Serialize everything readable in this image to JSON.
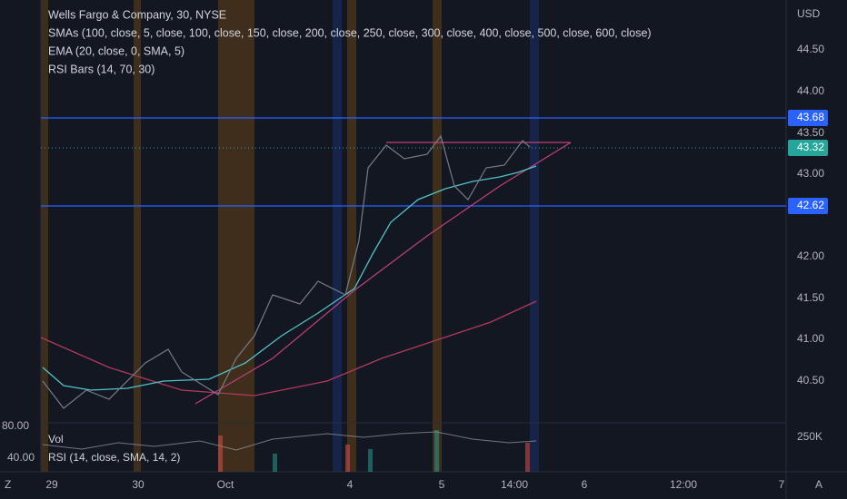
{
  "legend": {
    "title": "Wells Fargo & Company, 30, NYSE",
    "lines": [
      "SMAs (100, close, 5, close, 100, close, 150, close, 200, close, 250, close, 300, close, 400, close, 500, close, 600, close)",
      "EMA (20, close, 0, SMA, 5)",
      "RSI Bars (14, 70, 30)"
    ]
  },
  "price_axis": {
    "currency": "USD",
    "labels": [
      "44.50",
      "44.00",
      "43.50",
      "43.00",
      "42.00",
      "41.50",
      "41.00",
      "40.50"
    ]
  },
  "price_tags": {
    "upper_level": "43.68",
    "current": "43.32",
    "lower_level": "42.62"
  },
  "lower_pane": {
    "left_labels": [
      "80.00",
      "40.00"
    ],
    "right_label": "250K",
    "volume": "Vol",
    "rsi": "RSI (14, close, SMA, 14, 2)"
  },
  "time_axis": {
    "left_button": "Z",
    "labels": [
      "29",
      "30",
      "Oct",
      "4",
      "5",
      "14:00",
      "6",
      "12:00",
      "7"
    ],
    "right_button": "A"
  }
}
